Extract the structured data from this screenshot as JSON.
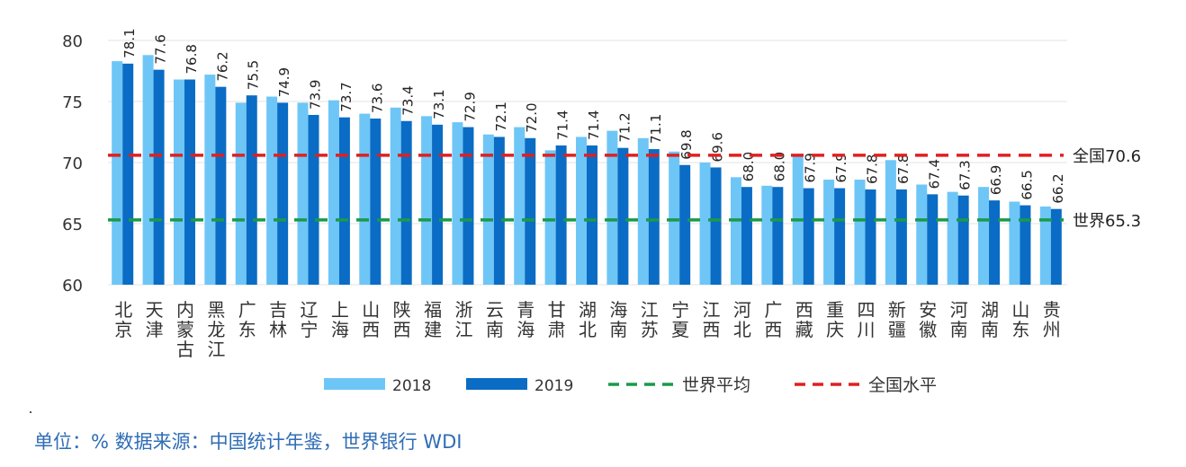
{
  "chart_data": {
    "type": "bar",
    "categories": [
      "北京",
      "天津",
      "内蒙古",
      "黑龙江",
      "广东",
      "吉林",
      "辽宁",
      "上海",
      "山西",
      "陕西",
      "福建",
      "浙江",
      "云南",
      "青海",
      "甘肃",
      "湖北",
      "海南",
      "江苏",
      "宁夏",
      "江西",
      "河北",
      "广西",
      "西藏",
      "重庆",
      "四川",
      "新疆",
      "安徽",
      "河南",
      "湖南",
      "山东",
      "贵州"
    ],
    "series": [
      {
        "name": "2018",
        "color": "#6ec6f7",
        "values": [
          78.3,
          78.8,
          76.8,
          77.2,
          74.9,
          75.4,
          74.9,
          75.1,
          74.0,
          74.5,
          73.8,
          73.3,
          72.3,
          72.9,
          71.0,
          72.1,
          72.6,
          72.0,
          70.9,
          70.0,
          68.8,
          68.1,
          70.7,
          68.6,
          68.6,
          70.2,
          68.2,
          67.6,
          68.0,
          66.8,
          66.4
        ]
      },
      {
        "name": "2019",
        "color": "#0a6cc4",
        "values": [
          78.1,
          77.6,
          76.8,
          76.2,
          75.5,
          74.9,
          73.9,
          73.7,
          73.6,
          73.4,
          73.1,
          72.9,
          72.1,
          72.0,
          71.4,
          71.4,
          71.2,
          71.1,
          69.8,
          69.6,
          68.0,
          68.0,
          67.9,
          67.9,
          67.8,
          67.8,
          67.4,
          67.3,
          66.9,
          66.5,
          66.2
        ]
      }
    ],
    "data_labels": [
      "78.1",
      "77.6",
      "76.8",
      "76.2",
      "75.5",
      "74.9",
      "73.9",
      "73.7",
      "73.6",
      "73.4",
      "73.1",
      "72.9",
      "72.1",
      "72.0",
      "71.4",
      "71.4",
      "71.2",
      "71.1",
      "69.8",
      "69.6",
      "68.0",
      "68.0",
      "67.9",
      "67.9",
      "67.8",
      "67.8",
      "67.4",
      "67.3",
      "66.9",
      "66.5",
      "66.2"
    ],
    "reference_lines": [
      {
        "name": "世界平均",
        "value": 65.3,
        "label": "世界65.3",
        "color": "#1a9a4a"
      },
      {
        "name": "全国水平",
        "value": 70.6,
        "label": "全国70.6",
        "color": "#e02020"
      }
    ],
    "yticks": [
      "60",
      "65",
      "70",
      "75",
      "80"
    ],
    "ylim": [
      60,
      80
    ],
    "grid": true,
    "legend_position": "bottom"
  },
  "footer": "单位：%  数据来源：中国统计年鉴，世界银行 WDI"
}
